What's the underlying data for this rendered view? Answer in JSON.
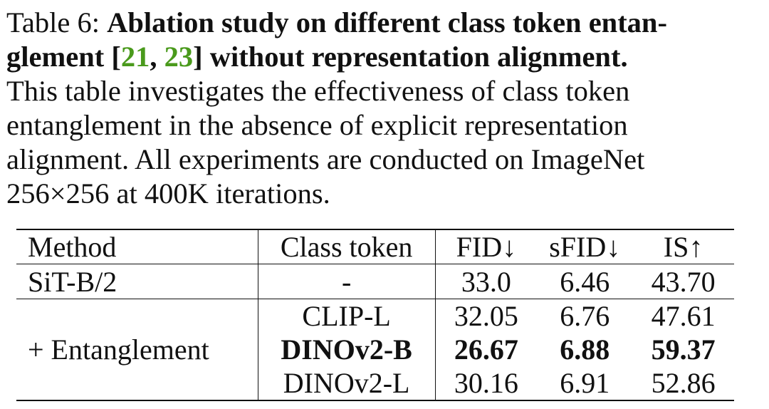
{
  "caption": {
    "label": "Table 6:",
    "bold_line1": "Ablation study on different class token entan-",
    "bold_line2_a": "glement [",
    "cite_1": "21",
    "bold_line2_b": ", ",
    "cite_2": "23",
    "bold_line2_c": "] without representation alignment.",
    "line3": "This table investigates the effectiveness of class token",
    "line4": "entanglement in the absence of explicit representation",
    "line5": "alignment. All experiments are conducted on ImageNet",
    "line6": "256×256 at 400K iterations."
  },
  "table": {
    "headers": {
      "method": "Method",
      "class_token": "Class token",
      "fid": "FID↓",
      "sfid": "sFID↓",
      "is": "IS↑"
    },
    "baseline": {
      "method": "SiT-B/2",
      "class_token": "-",
      "fid": "33.0",
      "sfid": "6.46",
      "is": "43.70"
    },
    "entanglement_group": {
      "method": "+ Entanglement",
      "rows": [
        {
          "class_token": "CLIP-L",
          "fid": "32.05",
          "sfid": "6.76",
          "is": "47.61"
        },
        {
          "class_token": "DINOv2-B",
          "fid": "26.67",
          "sfid": "6.88",
          "is": "59.37"
        },
        {
          "class_token": "DINOv2-L",
          "fid": "30.16",
          "sfid": "6.91",
          "is": "52.86"
        }
      ]
    }
  }
}
